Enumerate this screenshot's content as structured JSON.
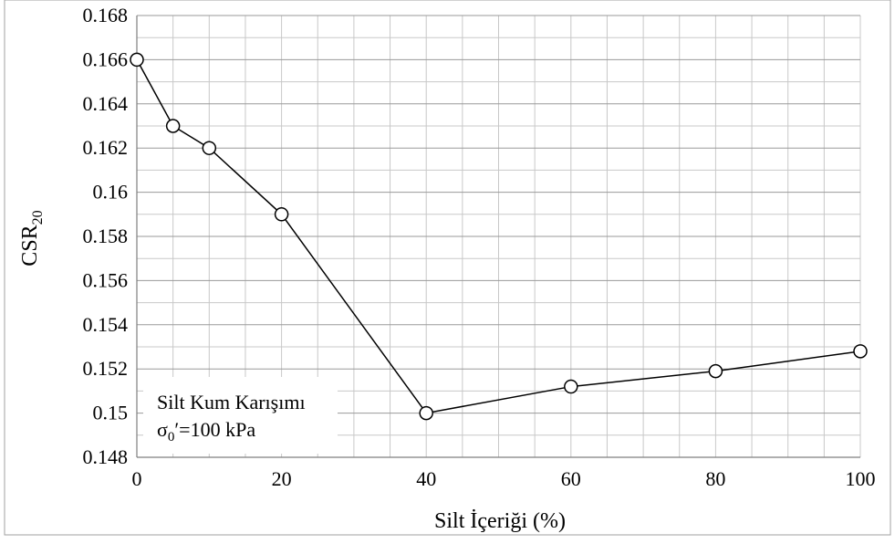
{
  "chart_data": {
    "type": "line",
    "title": "",
    "xlabel": "Silt İçeriği (%)",
    "ylabel_main": "CSR",
    "ylabel_sub": "20",
    "xlim": [
      0,
      100
    ],
    "ylim": [
      0.148,
      0.168
    ],
    "x_ticks": [
      "0",
      "20",
      "40",
      "60",
      "80",
      "100"
    ],
    "y_ticks": [
      "0.148",
      "0.15",
      "0.152",
      "0.154",
      "0.156",
      "0.158",
      "0.16",
      "0.162",
      "0.164",
      "0.166",
      "0.168"
    ],
    "x_minor_step": 5,
    "y_minor_step": 0.001,
    "grid": true,
    "legend": "none",
    "marker": "open-circle",
    "line_color": "#000000",
    "grid_color": "#c8c8c8",
    "series": [
      {
        "x": [
          0,
          5,
          10,
          20,
          40,
          60,
          80,
          100
        ],
        "y": [
          0.166,
          0.163,
          0.162,
          0.159,
          0.15,
          0.1512,
          0.1519,
          0.1528
        ]
      }
    ],
    "annotation": {
      "line1": "Silt Kum Karışımı",
      "line2_sigma": "σ",
      "line2_sub": "0",
      "line2_rest": "′=100 kPa"
    }
  }
}
